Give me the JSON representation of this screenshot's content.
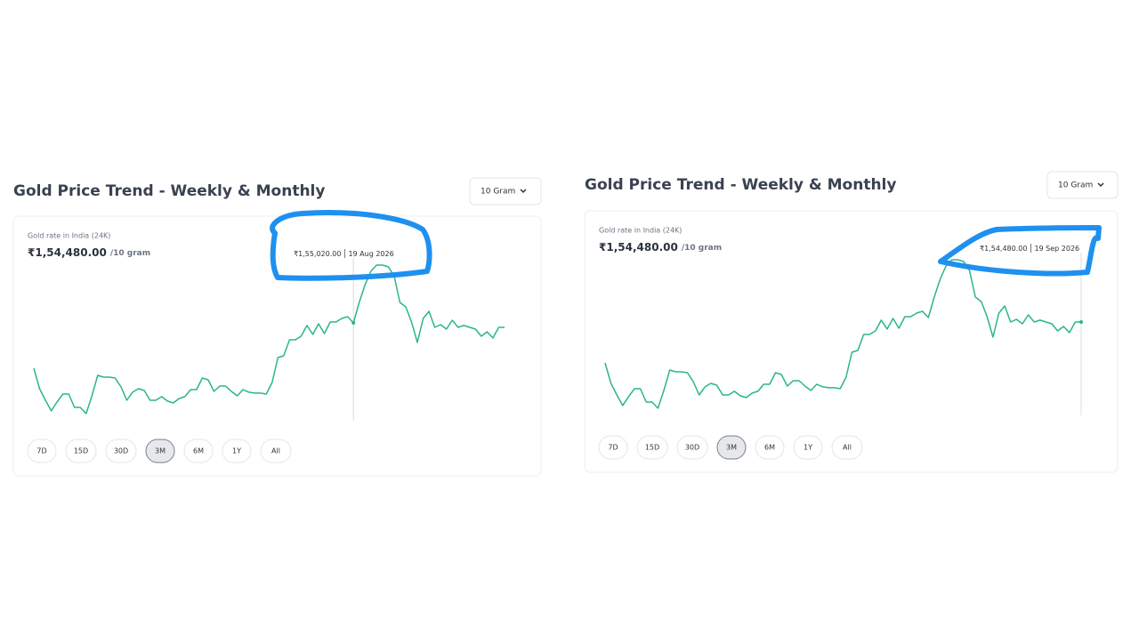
{
  "chart_data": [
    {
      "type": "line",
      "title": "Gold Price Trend - Weekly & Monthly",
      "selector": "10 Gram",
      "caption": "Gold rate in India (24K)",
      "price": "₹1,54,480.00",
      "price_unit": "/10 gram",
      "tooltip": {
        "value": 155020,
        "label": "₹1,55,020.00",
        "date": "19 Aug 2026"
      },
      "color": "#2bb58a",
      "ranges": [
        "7D",
        "15D",
        "30D",
        "3M",
        "6M",
        "1Y",
        "All"
      ],
      "active_range": "3M",
      "values": [
        149510,
        147030,
        145620,
        144330,
        145410,
        146380,
        146380,
        144760,
        144760,
        144000,
        146160,
        148650,
        148430,
        148430,
        148320,
        147240,
        145620,
        146600,
        147030,
        146810,
        145620,
        145620,
        146060,
        145520,
        145300,
        145840,
        146060,
        146920,
        146920,
        148320,
        148110,
        146700,
        147350,
        147350,
        146700,
        146160,
        146920,
        146600,
        146490,
        146490,
        146380,
        147780,
        150810,
        151020,
        152970,
        152970,
        153400,
        154700,
        153620,
        154910,
        153720,
        155130,
        155130,
        155560,
        155780,
        155020,
        157500,
        159660,
        161280,
        162040,
        162040,
        161820,
        160740,
        157500,
        156960,
        155130,
        152640,
        155560,
        156420,
        154480,
        154800,
        154260,
        155340,
        154480,
        154700,
        154480,
        154260,
        153400,
        153940,
        153180,
        154480,
        154480
      ]
    },
    {
      "type": "line",
      "title": "Gold Price Trend - Weekly & Monthly",
      "selector": "10 Gram",
      "caption": "Gold rate in India (24K)",
      "price": "₹1,54,480.00",
      "price_unit": "/10 gram",
      "tooltip": {
        "value": 154480,
        "label": "₹1,54,480.00",
        "date": "19 Sep 2026"
      },
      "color": "#2bb58a",
      "ranges": [
        "7D",
        "15D",
        "30D",
        "3M",
        "6M",
        "1Y",
        "All"
      ],
      "active_range": "3M",
      "values": [
        149510,
        147030,
        145620,
        144330,
        145410,
        146380,
        146380,
        144760,
        144760,
        144000,
        146160,
        148650,
        148430,
        148430,
        148320,
        147240,
        145620,
        146600,
        147030,
        146810,
        145620,
        145620,
        146060,
        145520,
        145300,
        145840,
        146060,
        146920,
        146920,
        148320,
        148110,
        146700,
        147350,
        147350,
        146700,
        146160,
        146920,
        146600,
        146490,
        146490,
        146380,
        147780,
        150810,
        151020,
        152970,
        152970,
        153400,
        154700,
        153620,
        154910,
        153720,
        155130,
        155130,
        155560,
        155780,
        155020,
        157500,
        159660,
        161280,
        162040,
        162040,
        161820,
        160740,
        157500,
        156960,
        155130,
        152640,
        155560,
        156420,
        154480,
        154800,
        154260,
        155340,
        154480,
        154700,
        154480,
        154260,
        153400,
        153940,
        153180,
        154480,
        154480
      ]
    }
  ]
}
